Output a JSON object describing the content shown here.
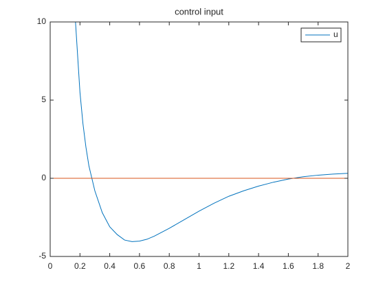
{
  "chart_data": {
    "type": "line",
    "title": "control input",
    "x": [
      0,
      0.05,
      0.1,
      0.15,
      0.17,
      0.18,
      0.2,
      0.22,
      0.24,
      0.26,
      0.28,
      0.3,
      0.35,
      0.4,
      0.45,
      0.5,
      0.55,
      0.6,
      0.65,
      0.7,
      0.8,
      0.9,
      1.0,
      1.1,
      1.2,
      1.3,
      1.4,
      1.5,
      1.6,
      1.7,
      1.8,
      1.9,
      2.0
    ],
    "series": [
      {
        "name": "u",
        "color": "#0072bd",
        "values": [
          10,
          10,
          10,
          10,
          10,
          8.5,
          5.5,
          3.5,
          2,
          0.8,
          0,
          -0.8,
          -2.2,
          -3.1,
          -3.6,
          -3.95,
          -4.05,
          -4.02,
          -3.9,
          -3.7,
          -3.2,
          -2.65,
          -2.1,
          -1.6,
          -1.15,
          -0.8,
          -0.5,
          -0.25,
          -0.05,
          0.1,
          0.2,
          0.27,
          0.32
        ]
      },
      {
        "color": "#d95319",
        "values": [
          0,
          0,
          0,
          0,
          0,
          0,
          0,
          0,
          0,
          0,
          0,
          0,
          0,
          0,
          0,
          0,
          0,
          0,
          0,
          0,
          0,
          0,
          0,
          0,
          0,
          0,
          0,
          0,
          0,
          0,
          0,
          0,
          0
        ]
      }
    ],
    "xlim": [
      0,
      2
    ],
    "xticks": [
      0,
      0.2,
      0.4,
      0.6,
      0.8,
      1,
      1.2,
      1.4,
      1.6,
      1.8,
      2
    ],
    "ylim": [
      -5,
      10
    ],
    "yticks": [
      -5,
      0,
      5,
      10
    ],
    "grid": false,
    "legend": "northeast"
  }
}
